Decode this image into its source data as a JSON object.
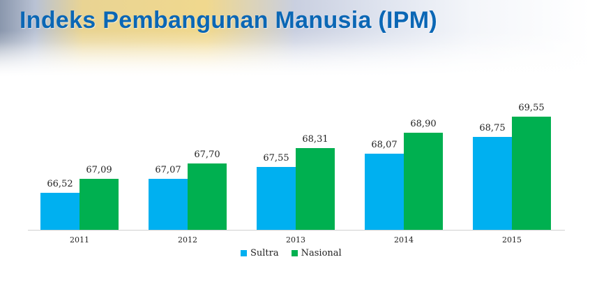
{
  "header": {
    "title": "Indeks Pembangunan Manusia (IPM)"
  },
  "colors": {
    "sultra": "#00b0f0",
    "nasional": "#00b050",
    "title": "#0b67b5"
  },
  "chart_data": {
    "type": "bar",
    "title": "Indeks Pembangunan Manusia (IPM)",
    "categories": [
      "2011",
      "2012",
      "2013",
      "2014",
      "2015"
    ],
    "series": [
      {
        "name": "Sultra",
        "values": [
          66.52,
          67.07,
          67.55,
          68.07,
          68.75
        ],
        "labels": [
          "66,52",
          "67,07",
          "67,55",
          "68,07",
          "68,75"
        ]
      },
      {
        "name": "Nasional",
        "values": [
          67.09,
          67.7,
          68.31,
          68.9,
          69.55
        ],
        "labels": [
          "67,09",
          "67,70",
          "68,31",
          "68,90",
          "69,55"
        ]
      }
    ],
    "xlabel": "",
    "ylabel": "",
    "grid": false,
    "legend_position": "bottom"
  },
  "legend": {
    "items": [
      "Sultra",
      "Nasional"
    ]
  }
}
